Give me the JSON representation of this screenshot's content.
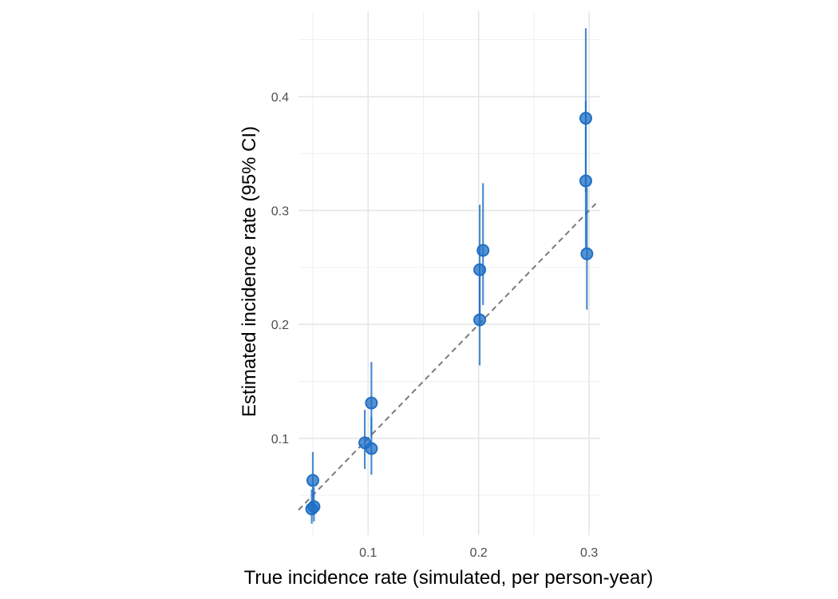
{
  "chart_data": {
    "type": "scatter",
    "title": "",
    "xlabel": "True incidence rate (simulated, per person-year)",
    "ylabel": "Estimated incidence rate (95% CI)",
    "xlim": [
      0.037,
      0.31
    ],
    "ylim": [
      0.015,
      0.475
    ],
    "x_ticks": [
      0.1,
      0.2,
      0.3
    ],
    "x_tick_labels": [
      "0.1",
      "0.2",
      "0.3"
    ],
    "y_ticks": [
      0.1,
      0.2,
      0.3,
      0.4
    ],
    "y_tick_labels": [
      "0.1",
      "0.2",
      "0.3",
      "0.4"
    ],
    "grid": true,
    "legend": "none",
    "reference_line": {
      "type": "identity",
      "style": "dashed",
      "color": "#7a7a7a"
    },
    "point_color": "#1f6fc5",
    "points": [
      {
        "x": 0.05,
        "y": 0.063,
        "lower": 0.039,
        "upper": 0.088
      },
      {
        "x": 0.049,
        "y": 0.038,
        "lower": 0.025,
        "upper": 0.055
      },
      {
        "x": 0.051,
        "y": 0.04,
        "lower": 0.027,
        "upper": 0.057
      },
      {
        "x": 0.097,
        "y": 0.096,
        "lower": 0.073,
        "upper": 0.125
      },
      {
        "x": 0.103,
        "y": 0.131,
        "lower": 0.101,
        "upper": 0.167
      },
      {
        "x": 0.103,
        "y": 0.091,
        "lower": 0.068,
        "upper": 0.119
      },
      {
        "x": 0.201,
        "y": 0.204,
        "lower": 0.164,
        "upper": 0.253
      },
      {
        "x": 0.201,
        "y": 0.248,
        "lower": 0.203,
        "upper": 0.305
      },
      {
        "x": 0.204,
        "y": 0.265,
        "lower": 0.217,
        "upper": 0.324
      },
      {
        "x": 0.297,
        "y": 0.381,
        "lower": 0.316,
        "upper": 0.46
      },
      {
        "x": 0.297,
        "y": 0.326,
        "lower": 0.266,
        "upper": 0.396
      },
      {
        "x": 0.298,
        "y": 0.262,
        "lower": 0.213,
        "upper": 0.32
      }
    ]
  }
}
